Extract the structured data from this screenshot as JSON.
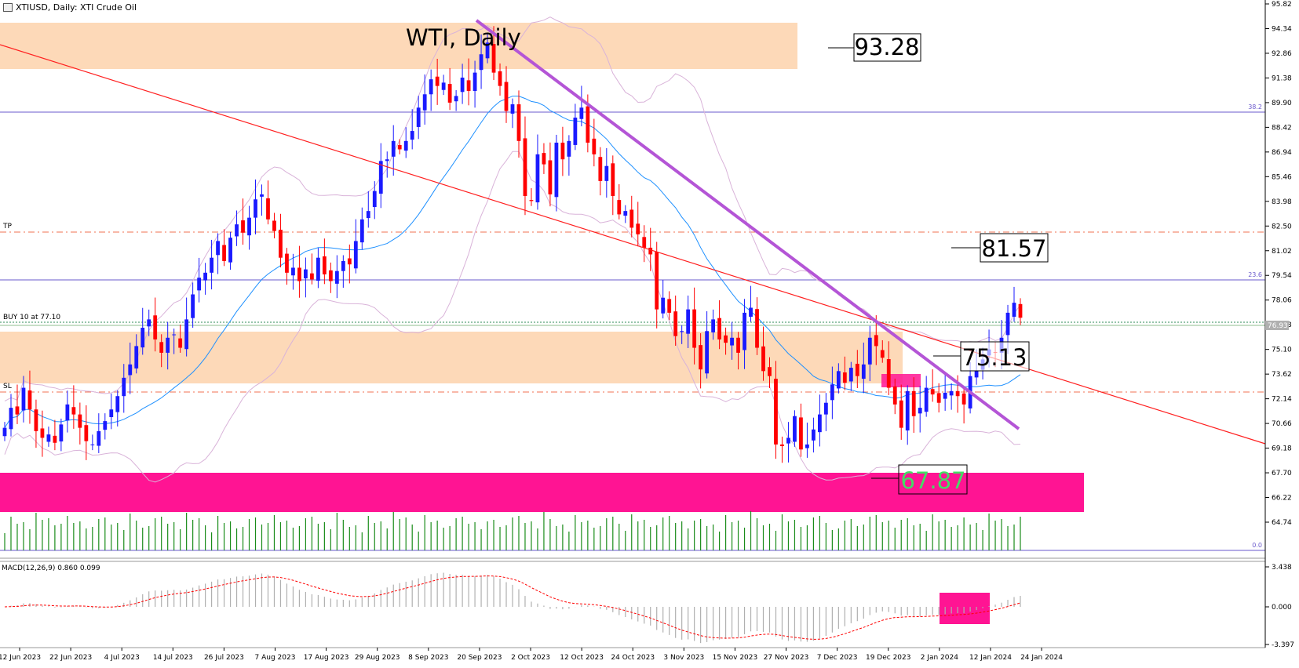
{
  "header": {
    "title": "XTIUSD, Daily:  XTI Crude Oil"
  },
  "chart_title": "WTI, Daily",
  "annotations": {
    "level_top": "93.28",
    "level_tp": "81.57",
    "level_mid": "75.13",
    "level_low": "67.87"
  },
  "lines": {
    "fib_38": "38.2",
    "fib_23": "23.6",
    "fib_0": "0.0",
    "tp_label": "TP",
    "sl_label": "SL",
    "buy_label": "BUY 10 at 77.10",
    "bid_label": "76.93"
  },
  "price_axis": [
    "95.82",
    "94.34",
    "92.86",
    "91.38",
    "89.90",
    "88.42",
    "86.94",
    "85.46",
    "83.98",
    "82.50",
    "81.02",
    "79.54",
    "78.06",
    "76.58",
    "75.10",
    "73.62",
    "72.14",
    "70.66",
    "69.18",
    "67.70",
    "66.22",
    "64.74"
  ],
  "macd": {
    "label": "MACD(12,26,9) 0.860 0.099",
    "axis": [
      "3.438",
      "0.000",
      "-3.397"
    ]
  },
  "colors": {
    "bull": "#1a1aff",
    "bear": "#ff0000",
    "zone": "#fdd9b8",
    "pink": "#ff1493",
    "fib": "#6a5acd",
    "trend": "#b455d6",
    "volume": "#1a8c1a"
  },
  "chart_data": {
    "type": "candlestick",
    "symbol": "XTIUSD",
    "timeframe": "Daily",
    "x_labels": [
      "12 Jun 2023",
      "22 Jun 2023",
      "4 Jul 2023",
      "14 Jul 2023",
      "26 Jul 2023",
      "7 Aug 2023",
      "17 Aug 2023",
      "29 Aug 2023",
      "8 Sep 2023",
      "20 Sep 2023",
      "2 Oct 2023",
      "12 Oct 2023",
      "24 Oct 2023",
      "3 Nov 2023",
      "15 Nov 2023",
      "27 Nov 2023",
      "7 Dec 2023",
      "19 Dec 2023",
      "2 Jan 2024",
      "12 Jan 2024",
      "24 Jan 2024"
    ],
    "closes": [
      70.4,
      71.6,
      71.2,
      72.8,
      71.5,
      70.2,
      69.8,
      70.0,
      69.5,
      70.6,
      71.8,
      71.2,
      70.4,
      69.6,
      69.4,
      70.2,
      70.8,
      71.5,
      72.3,
      73.4,
      74.2,
      75.3,
      76.4,
      76.9,
      75.7,
      74.9,
      75.8,
      76.0,
      75.2,
      76.9,
      78.4,
      79.4,
      79.7,
      80.6,
      81.6,
      80.4,
      81.8,
      82.6,
      82.1,
      83.0,
      84.1,
      84.4,
      82.9,
      82.2,
      80.6,
      79.7,
      80.0,
      79.2,
      79.9,
      79.3,
      80.6,
      79.6,
      79.2,
      79.8,
      80.4,
      80.2,
      81.6,
      82.9,
      83.4,
      84.6,
      86.4,
      86.5,
      87.6,
      87.1,
      87.6,
      88.2,
      89.6,
      90.4,
      91.3,
      90.9,
      91.1,
      89.9,
      90.3,
      91.4,
      90.6,
      91.7,
      92.8,
      93.5,
      91.7,
      90.9,
      89.4,
      89.8,
      87.6,
      84.3,
      84.0,
      86.8,
      86.2,
      84.4,
      87.5,
      86.5,
      87.6,
      89.0,
      89.6,
      87.5,
      86.8,
      85.2,
      86.1,
      84.3,
      83.2,
      83.4,
      82.4,
      82.0,
      81.2,
      80.8,
      77.5,
      78.2,
      77.3,
      75.9,
      76.2,
      77.5,
      75.2,
      73.9,
      76.2,
      76.9,
      75.7,
      75.5,
      75.8,
      74.9,
      77.3,
      77.6,
      75.2,
      73.8,
      73.5,
      69.4,
      69.3,
      69.8,
      71.1,
      69.1,
      69.4,
      70.3,
      71.2,
      71.9,
      73.0,
      73.8,
      73.1,
      74.0,
      73.5,
      74.2,
      75.8,
      75.3,
      74.6,
      72.8,
      71.8,
      70.4,
      72.6,
      71.1,
      71.6,
      72.8,
      72.4,
      71.9,
      72.5,
      72.6,
      72.3,
      71.8,
      73.5,
      73.8,
      74.5,
      75.1,
      74.9,
      75.8,
      77.3,
      77.9,
      77.0
    ],
    "sma": 20,
    "macd_params": [
      12,
      26,
      9
    ],
    "macd_value": 0.86,
    "macd_signal": 0.099,
    "price_axis_range": [
      64.74,
      95.82
    ],
    "levels": {
      "top_zone": [
        91.9,
        94.6
      ],
      "mid_zone": [
        73.5,
        76.5
      ],
      "demand_zone": [
        66.0,
        68.3
      ],
      "tp": 82.5,
      "sl": 73.0,
      "buy": 77.1,
      "fib_38": 89.55,
      "fib_23": 79.73
    }
  }
}
